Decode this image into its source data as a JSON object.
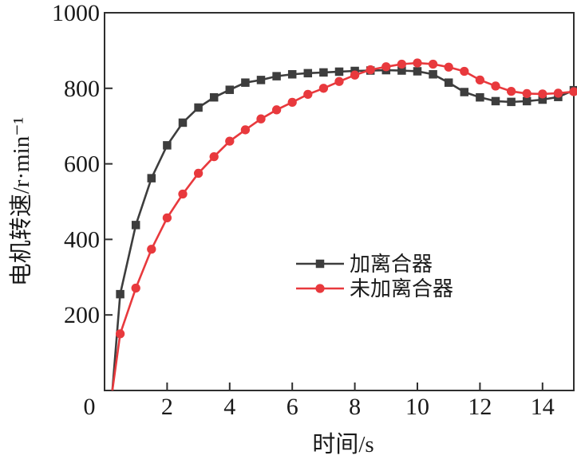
{
  "figure": {
    "background": "#ffffff",
    "axis_color": "#2f2f2f",
    "text_color": "#1a1a1a"
  },
  "chart_data": {
    "type": "line",
    "title": "",
    "xlabel": "时间/s",
    "ylabel": "电机转速/r·min⁻¹",
    "xlim": [
      0,
      15
    ],
    "ylim": [
      0,
      1000
    ],
    "xticks": [
      0,
      2,
      4,
      6,
      8,
      10,
      12,
      14
    ],
    "yticks": [
      200,
      400,
      600,
      800,
      1000
    ],
    "grid": false,
    "legend_position": "inside-center-right",
    "x": [
      0.25,
      0.5,
      1,
      1.5,
      2,
      2.5,
      3,
      3.5,
      4,
      4.5,
      5,
      5.5,
      6,
      6.5,
      7,
      7.5,
      8,
      8.5,
      9,
      9.5,
      10,
      10.5,
      11,
      11.5,
      12,
      12.5,
      13,
      13.5,
      14,
      14.5,
      15
    ],
    "series": [
      {
        "name": "加离合器",
        "color": "#3d3d3d",
        "marker": "square",
        "values": [
          0,
          255,
          438,
          562,
          649,
          709,
          749,
          776,
          796,
          815,
          822,
          832,
          837,
          840,
          842,
          844,
          846,
          847,
          848,
          847,
          845,
          837,
          815,
          790,
          776,
          766,
          764,
          766,
          770,
          777,
          795
        ]
      },
      {
        "name": "未加离合器",
        "color": "#e8393d",
        "marker": "circle",
        "values": [
          0,
          150,
          271,
          374,
          457,
          520,
          575,
          619,
          660,
          690,
          719,
          743,
          763,
          784,
          800,
          818,
          835,
          849,
          857,
          864,
          867,
          864,
          856,
          845,
          822,
          806,
          792,
          786,
          785,
          787,
          791
        ]
      }
    ]
  }
}
